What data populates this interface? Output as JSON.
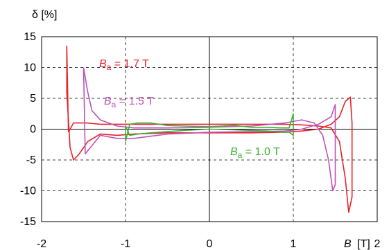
{
  "chart_data": {
    "type": "line",
    "xlabel": "B [T]",
    "xlabel_var": "B",
    "xlabel_unit": "[T]",
    "ylabel": "δ [%]",
    "xlim": [
      -2,
      2
    ],
    "ylim": [
      -15,
      15
    ],
    "xticks": [
      "-2",
      "-1",
      "0",
      "1",
      "2"
    ],
    "yticks": [
      "15",
      "10",
      "5",
      "0",
      "-5",
      "-10",
      "-15"
    ],
    "grid": true,
    "series": [
      {
        "name": "Ba = 1.7 T",
        "label": {
          "var": "B",
          "sub": "a",
          "rest": " = 1.7 T"
        },
        "color": "#e8212a",
        "x": [
          -1.68,
          -1.62,
          -1.55,
          -1.45,
          -1.3,
          -1.1,
          -0.9,
          -0.5,
          0.0,
          0.5,
          0.9,
          1.1,
          1.3,
          1.45,
          1.55,
          1.62,
          1.66,
          1.7,
          1.7,
          1.68,
          1.62,
          1.55,
          1.45,
          1.3,
          1.1,
          0.9,
          0.5,
          0.0,
          -0.5,
          -0.9,
          -1.1,
          -1.3,
          -1.45,
          -1.55,
          -1.62,
          -1.66,
          -1.7,
          -1.7,
          -1.68
        ],
        "y": [
          -0.5,
          1.0,
          1.0,
          1.0,
          0.8,
          0.8,
          0.8,
          0.8,
          0.8,
          0.8,
          0.8,
          0.7,
          0.5,
          0.2,
          -2.0,
          -8.0,
          -13.5,
          -11.0,
          1.0,
          5.2,
          4.5,
          2.0,
          0.8,
          0.0,
          -0.3,
          -0.5,
          -0.6,
          -0.6,
          -0.6,
          -0.8,
          -1.0,
          -0.8,
          -2.0,
          -4.0,
          -5.0,
          -3.0,
          6.0,
          13.5,
          -0.5
        ]
      },
      {
        "name": "Ba = 1.5 T",
        "label": {
          "var": "B",
          "sub": "a",
          "rest": " = 1.5 T"
        },
        "color": "#c050b8",
        "x": [
          -1.5,
          -1.45,
          -1.4,
          -1.3,
          -1.1,
          -0.9,
          -0.5,
          0.0,
          0.5,
          0.9,
          1.1,
          1.25,
          1.35,
          1.42,
          1.47,
          1.5,
          1.5,
          1.45,
          1.3,
          1.1,
          0.9,
          0.5,
          0.0,
          -0.5,
          -0.9,
          -1.1,
          -1.3,
          -1.42,
          -1.48,
          -1.5
        ],
        "y": [
          10.0,
          6.0,
          3.0,
          1.5,
          0.5,
          0.2,
          0.2,
          0.3,
          0.5,
          1.0,
          1.5,
          1.0,
          -1.0,
          -5.0,
          -10.0,
          -9.0,
          4.0,
          2.0,
          0.8,
          0.0,
          -0.3,
          -0.4,
          -0.5,
          -0.8,
          -1.5,
          -1.5,
          -1.0,
          -3.0,
          -4.0,
          10.0
        ]
      },
      {
        "name": "Ba = 1.0 T",
        "label": {
          "var": "B",
          "sub": "a",
          "rest": " = 1.0 T"
        },
        "color": "#3cb035",
        "x": [
          -1.0,
          -0.95,
          -0.85,
          -0.7,
          -0.5,
          -0.3,
          0.0,
          0.3,
          0.5,
          0.7,
          0.85,
          0.95,
          1.0,
          1.0,
          0.95,
          0.85,
          0.7,
          0.5,
          0.3,
          0.0,
          -0.3,
          -0.5,
          -0.7,
          -0.85,
          -0.95,
          -1.0,
          -1.0
        ],
        "y": [
          -2.0,
          0.8,
          1.0,
          1.0,
          0.6,
          0.5,
          0.4,
          0.6,
          0.3,
          0.3,
          0.2,
          0.2,
          2.5,
          -1.0,
          -0.5,
          -0.5,
          -0.3,
          -0.2,
          -0.1,
          0.0,
          -0.2,
          -0.4,
          -0.6,
          -0.8,
          -1.0,
          0.5,
          -2.0
        ]
      }
    ]
  }
}
